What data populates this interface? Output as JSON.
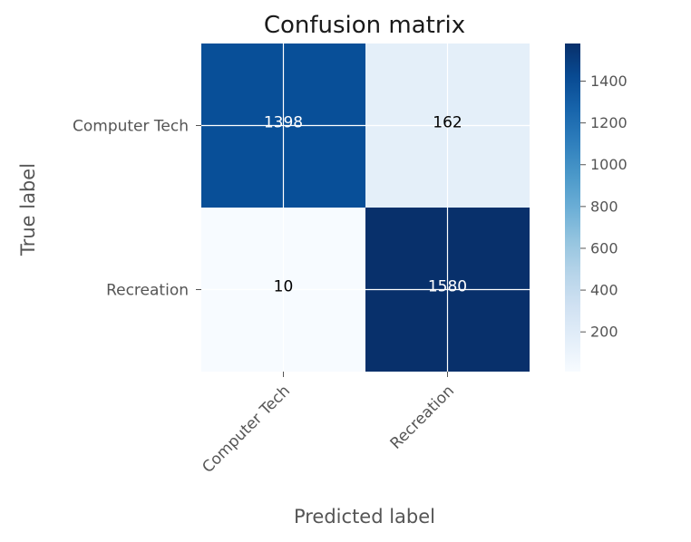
{
  "chart_data": {
    "type": "heatmap",
    "title": "Confusion matrix",
    "xlabel": "Predicted label",
    "ylabel": "True label",
    "x_categories": [
      "Computer Tech",
      "Recreation"
    ],
    "y_categories": [
      "Computer Tech",
      "Recreation"
    ],
    "values": [
      [
        1398,
        162
      ],
      [
        10,
        1580
      ]
    ],
    "value_labels": [
      [
        "1398",
        "162"
      ],
      [
        "10",
        "1580"
      ]
    ],
    "colormap": "Blues",
    "color_range": [
      10,
      1580
    ],
    "colorbar_ticks": [
      200,
      400,
      600,
      800,
      1000,
      1200,
      1400
    ],
    "colorbar_tick_labels": [
      "200",
      "400",
      "600",
      "800",
      "1000",
      "1200",
      "1400"
    ],
    "grid": true,
    "colors": {
      "low": "#f7fbff",
      "high": "#08306b",
      "text_dark": "#000000",
      "text_light": "#ffffff"
    }
  }
}
